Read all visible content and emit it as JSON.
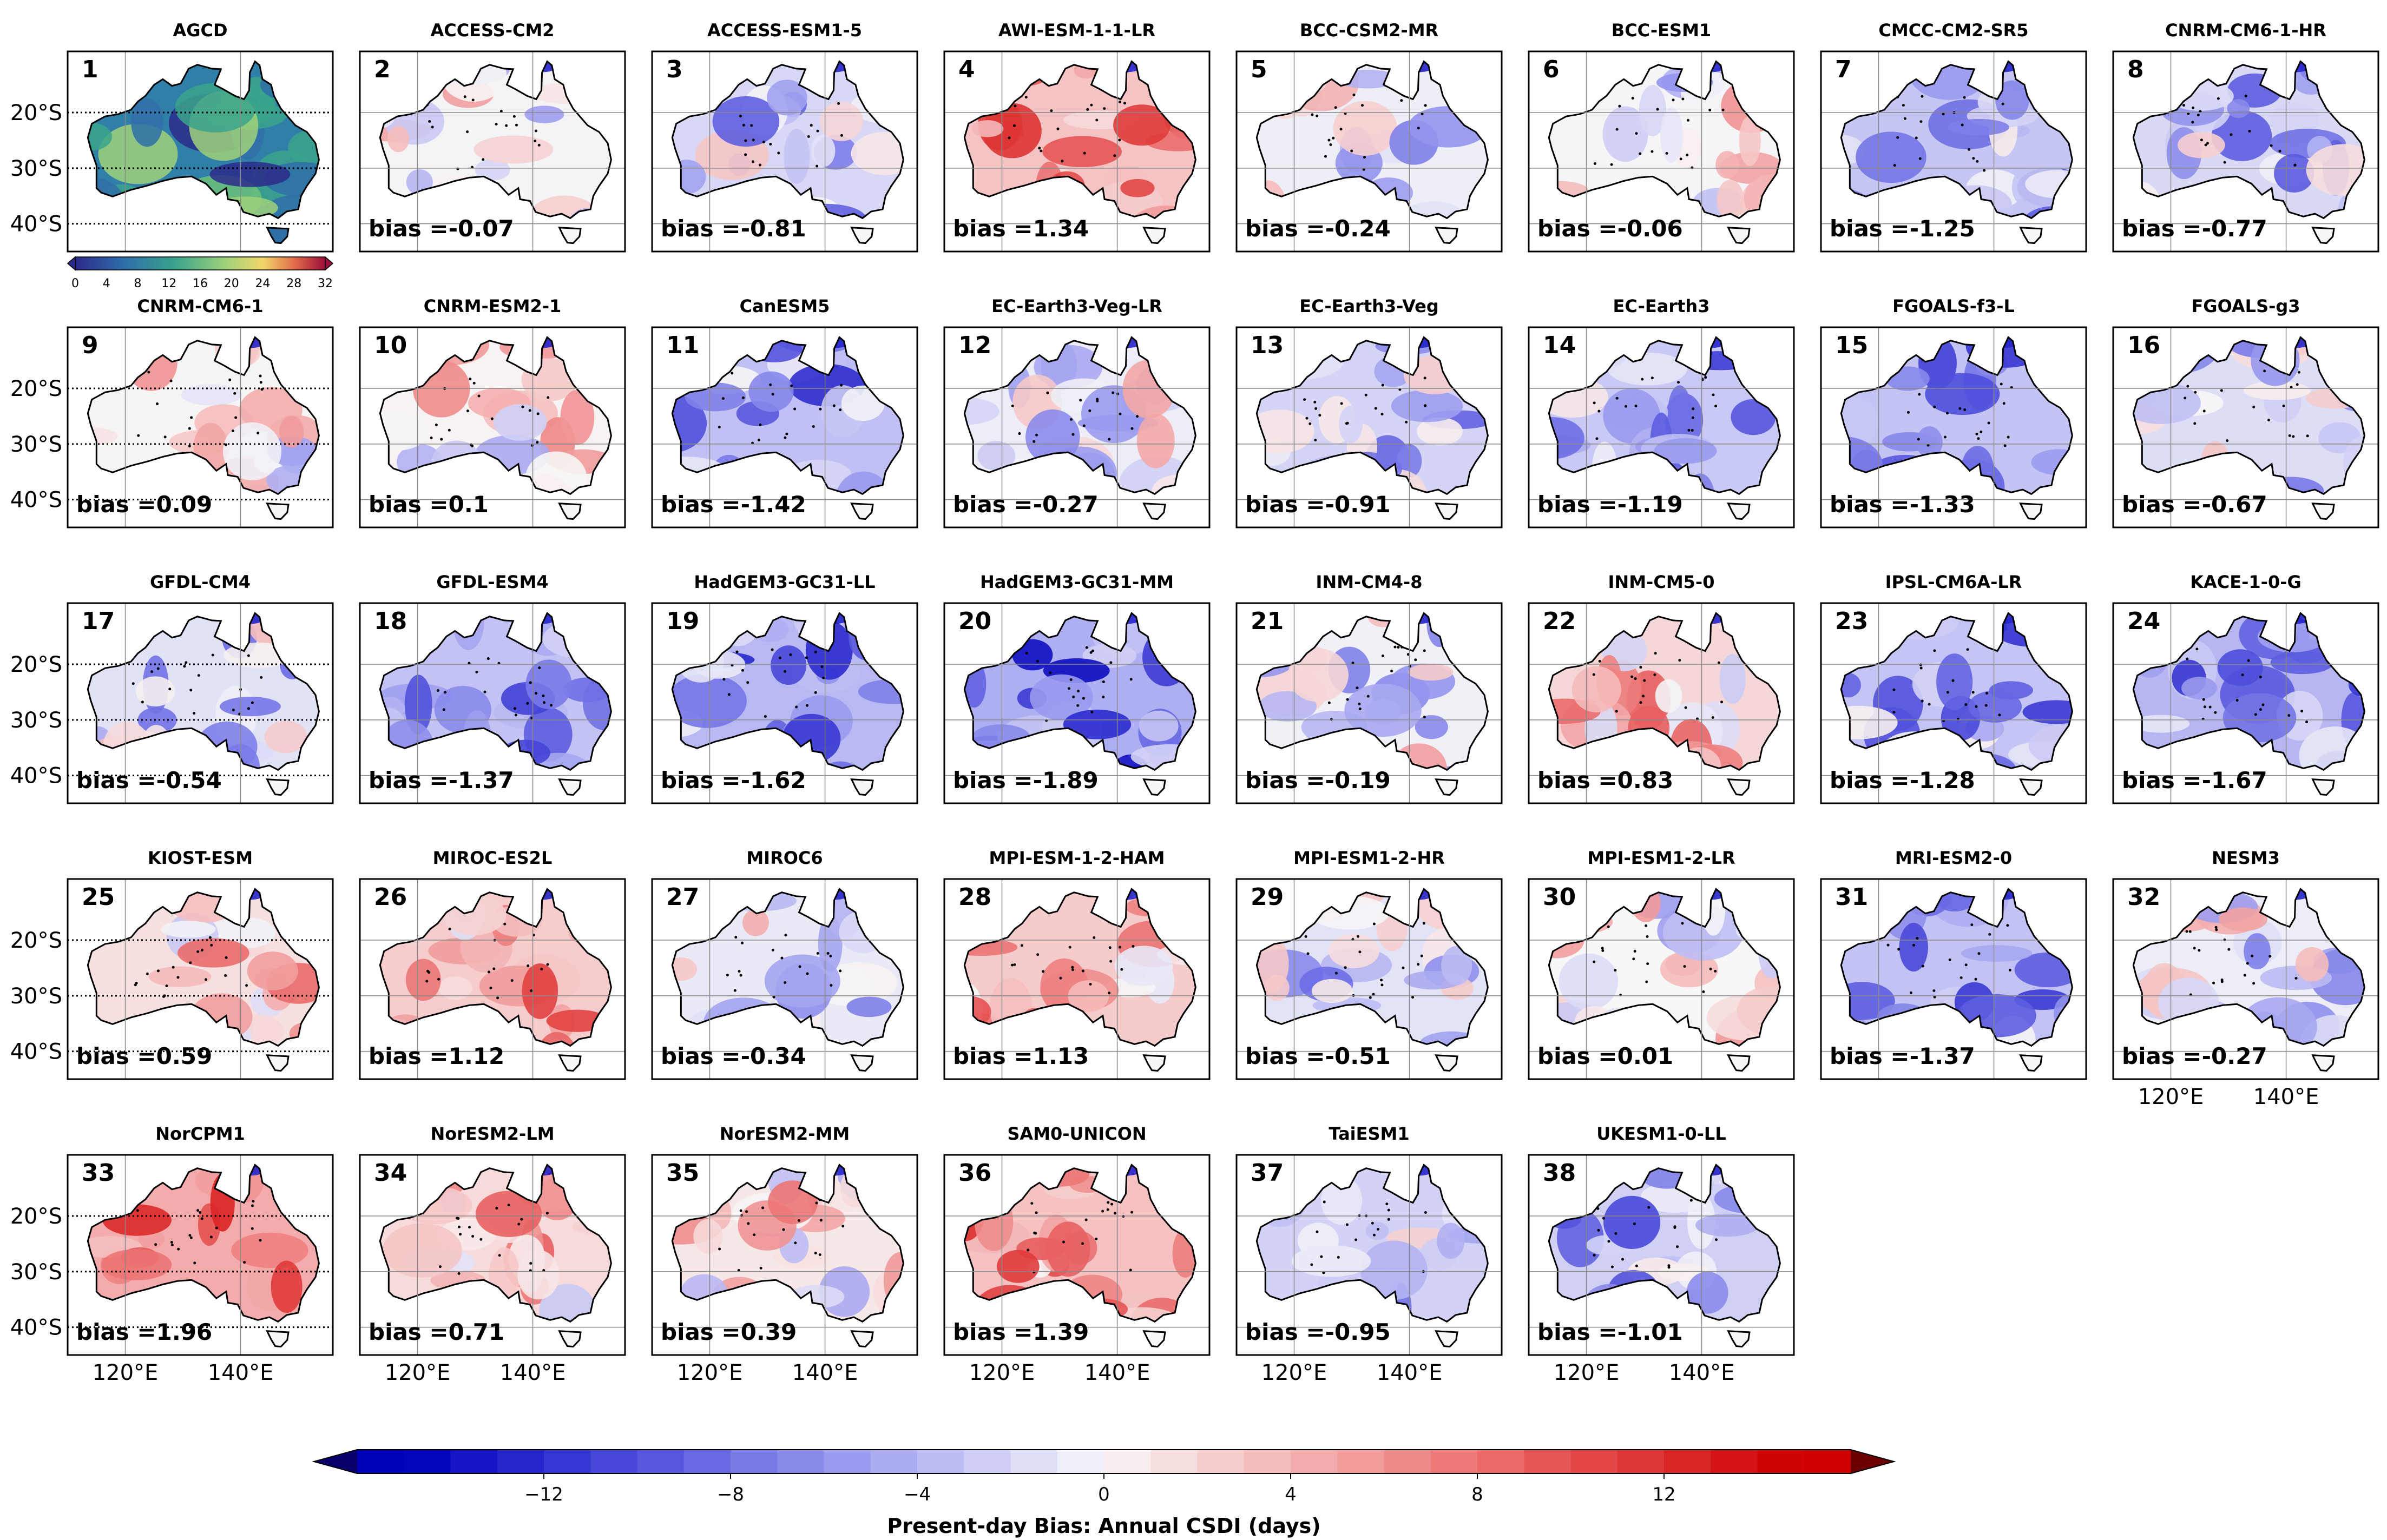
{
  "chart_data": {
    "type": "heatmap",
    "figure": "Present-day bias maps of annual CSDI over Australia for CMIP6 models relative to AGCD",
    "reference_panel": {
      "index": "1",
      "title": "AGCD",
      "colorbar_ticks": [
        "0",
        "4",
        "8",
        "12",
        "16",
        "20",
        "24",
        "28",
        "32"
      ],
      "colorbar_range": [
        0,
        32
      ]
    },
    "y_tick_labels": [
      "20°S",
      "30°S",
      "40°S"
    ],
    "x_tick_labels": [
      "120°E",
      "140°E"
    ],
    "bias_prefix": "bias =",
    "panels": [
      {
        "index": "2",
        "model": "ACCESS-CM2",
        "bias": "-0.07"
      },
      {
        "index": "3",
        "model": "ACCESS-ESM1-5",
        "bias": "-0.81"
      },
      {
        "index": "4",
        "model": "AWI-ESM-1-1-LR",
        "bias": "1.34"
      },
      {
        "index": "5",
        "model": "BCC-CSM2-MR",
        "bias": "-0.24"
      },
      {
        "index": "6",
        "model": "BCC-ESM1",
        "bias": "-0.06"
      },
      {
        "index": "7",
        "model": "CMCC-CM2-SR5",
        "bias": "-1.25"
      },
      {
        "index": "8",
        "model": "CNRM-CM6-1-HR",
        "bias": "-0.77"
      },
      {
        "index": "9",
        "model": "CNRM-CM6-1",
        "bias": "0.09"
      },
      {
        "index": "10",
        "model": "CNRM-ESM2-1",
        "bias": "0.1"
      },
      {
        "index": "11",
        "model": "CanESM5",
        "bias": "-1.42"
      },
      {
        "index": "12",
        "model": "EC-Earth3-Veg-LR",
        "bias": "-0.27"
      },
      {
        "index": "13",
        "model": "EC-Earth3-Veg",
        "bias": "-0.91"
      },
      {
        "index": "14",
        "model": "EC-Earth3",
        "bias": "-1.19"
      },
      {
        "index": "15",
        "model": "FGOALS-f3-L",
        "bias": "-1.33"
      },
      {
        "index": "16",
        "model": "FGOALS-g3",
        "bias": "-0.67"
      },
      {
        "index": "17",
        "model": "GFDL-CM4",
        "bias": "-0.54"
      },
      {
        "index": "18",
        "model": "GFDL-ESM4",
        "bias": "-1.37"
      },
      {
        "index": "19",
        "model": "HadGEM3-GC31-LL",
        "bias": "-1.62"
      },
      {
        "index": "20",
        "model": "HadGEM3-GC31-MM",
        "bias": "-1.89"
      },
      {
        "index": "21",
        "model": "INM-CM4-8",
        "bias": "-0.19"
      },
      {
        "index": "22",
        "model": "INM-CM5-0",
        "bias": "0.83"
      },
      {
        "index": "23",
        "model": "IPSL-CM6A-LR",
        "bias": "-1.28"
      },
      {
        "index": "24",
        "model": "KACE-1-0-G",
        "bias": "-1.67"
      },
      {
        "index": "25",
        "model": "KIOST-ESM",
        "bias": "0.59"
      },
      {
        "index": "26",
        "model": "MIROC-ES2L",
        "bias": "1.12"
      },
      {
        "index": "27",
        "model": "MIROC6",
        "bias": "-0.34"
      },
      {
        "index": "28",
        "model": "MPI-ESM-1-2-HAM",
        "bias": "1.13"
      },
      {
        "index": "29",
        "model": "MPI-ESM1-2-HR",
        "bias": "-0.51"
      },
      {
        "index": "30",
        "model": "MPI-ESM1-2-LR",
        "bias": "0.01"
      },
      {
        "index": "31",
        "model": "MRI-ESM2-0",
        "bias": "-1.37"
      },
      {
        "index": "32",
        "model": "NESM3",
        "bias": "-0.27"
      },
      {
        "index": "33",
        "model": "NorCPM1",
        "bias": "1.96"
      },
      {
        "index": "34",
        "model": "NorESM2-LM",
        "bias": "0.71"
      },
      {
        "index": "35",
        "model": "NorESM2-MM",
        "bias": "0.39"
      },
      {
        "index": "36",
        "model": "SAM0-UNICON",
        "bias": "1.39"
      },
      {
        "index": "37",
        "model": "TaiESM1",
        "bias": "-0.95"
      },
      {
        "index": "38",
        "model": "UKESM1-0-LL",
        "bias": "-1.01"
      }
    ],
    "colorbar": {
      "label": "Present-day Bias: Annual CSDI (days)",
      "range": [
        -16,
        16
      ],
      "tick_values": [
        -12,
        -8,
        -4,
        0,
        4,
        8,
        12
      ],
      "tick_labels": [
        "−12",
        "−8",
        "−4",
        "0",
        "4",
        "8",
        "12"
      ]
    },
    "colors": {
      "negative_max": "#08006b",
      "zero": "#f7f7f7",
      "positive_max": "#6b0000"
    }
  }
}
